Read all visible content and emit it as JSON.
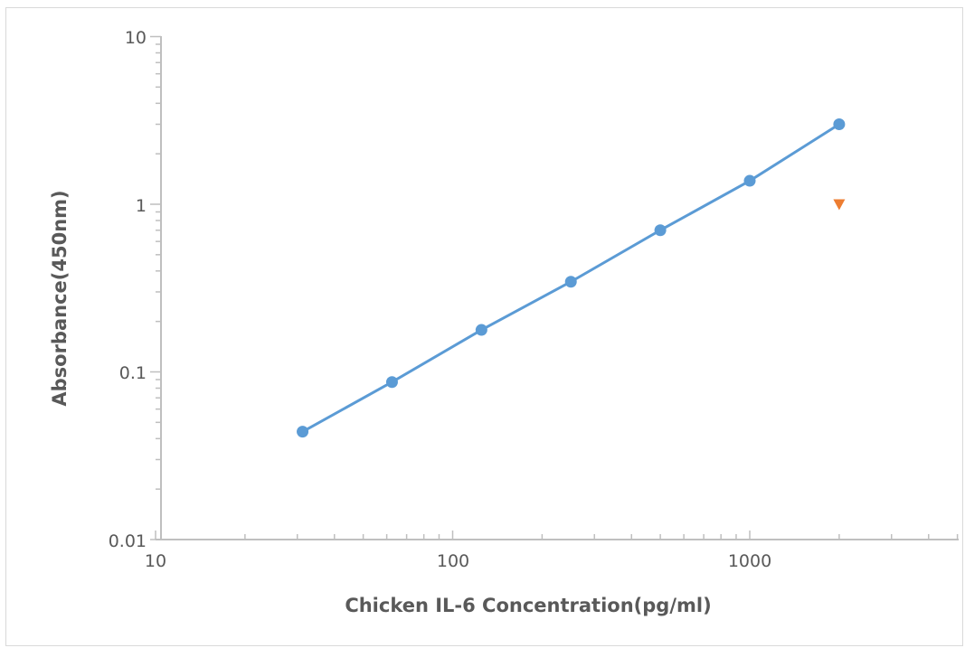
{
  "chart_data": {
    "type": "scatter",
    "title": "",
    "xlabel": "Chicken IL-6 Concentration(pg/ml)",
    "ylabel": "Absorbance(450nm)",
    "x_scale": "log",
    "y_scale": "log",
    "xlim": [
      10,
      5000
    ],
    "ylim": [
      0.01,
      10
    ],
    "x_tick_labels": [
      "10",
      "100",
      "1000"
    ],
    "y_tick_labels": [
      "10",
      "1",
      "0.1",
      "0.01"
    ],
    "grid": false,
    "legend": "none",
    "series": [
      {
        "color": "#5b9bd5",
        "marker": "circle",
        "line": true,
        "x": [
          31.25,
          62.5,
          125,
          250,
          500,
          1000,
          2000
        ],
        "y": [
          0.044,
          0.087,
          0.178,
          0.345,
          0.7,
          1.38,
          3.0
        ]
      },
      {
        "color": "#ed7d31",
        "marker": "triangle-down",
        "line": false,
        "x": [
          2000
        ],
        "y": [
          1.0
        ]
      }
    ]
  }
}
